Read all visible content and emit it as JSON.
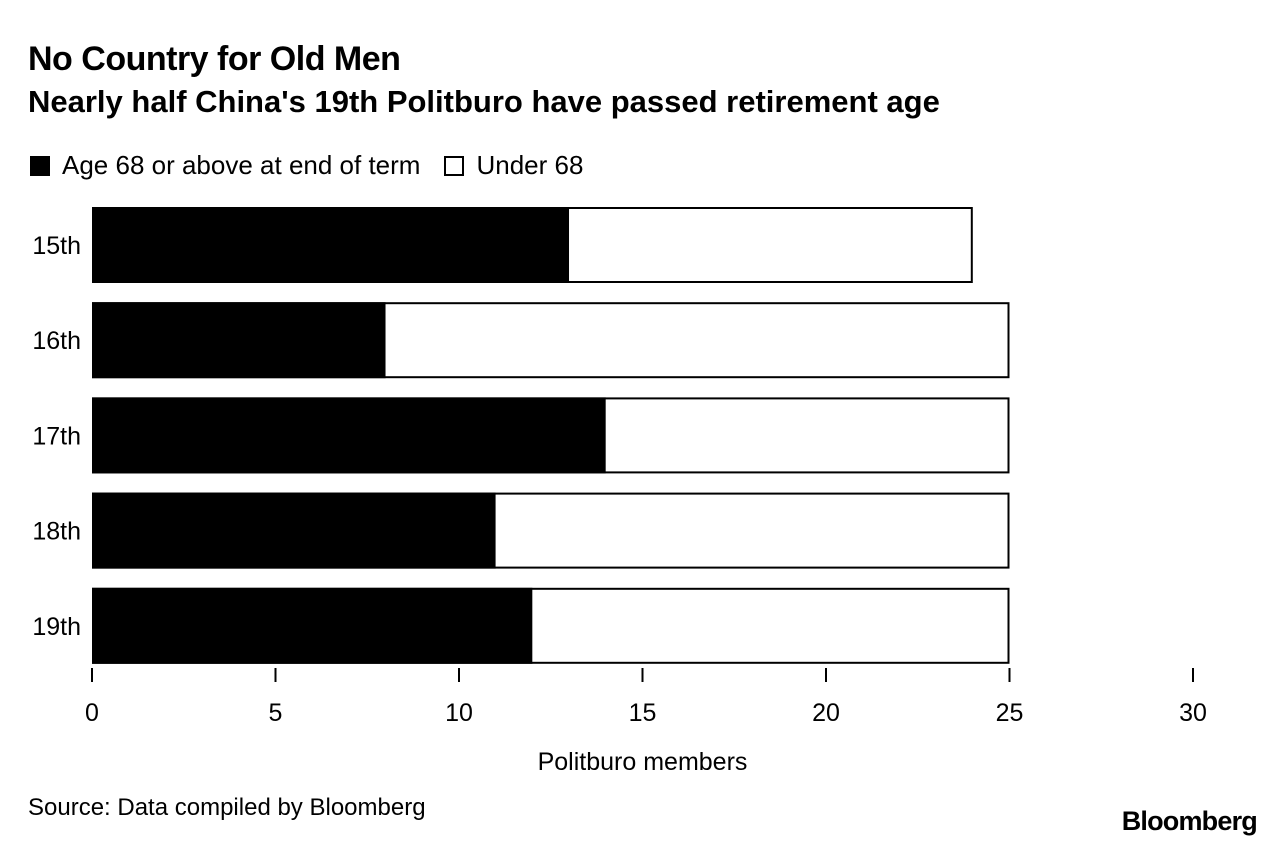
{
  "title": "No Country for Old Men",
  "subtitle": "Nearly half China's 19th Politburo have passed retirement age",
  "source": "Source: Data compiled by Bloomberg",
  "logo": "Bloomberg",
  "colors": {
    "old": "#000000",
    "young": "#ffffff",
    "outline": "#000000"
  },
  "chart_data": {
    "type": "bar",
    "orientation": "horizontal",
    "stacked": true,
    "categories": [
      "15th",
      "16th",
      "17th",
      "18th",
      "19th"
    ],
    "series": [
      {
        "name": "Age 68 or above at end of term",
        "values": [
          13,
          8,
          14,
          11,
          12
        ]
      },
      {
        "name": "Under 68",
        "values": [
          11,
          17,
          11,
          14,
          13
        ]
      }
    ],
    "xlabel": "Politburo members",
    "ylabel": "",
    "xlim": [
      0,
      30
    ],
    "xticks": [
      0,
      5,
      10,
      15,
      20,
      25,
      30
    ],
    "grid": false,
    "legend_position": "top-left"
  }
}
